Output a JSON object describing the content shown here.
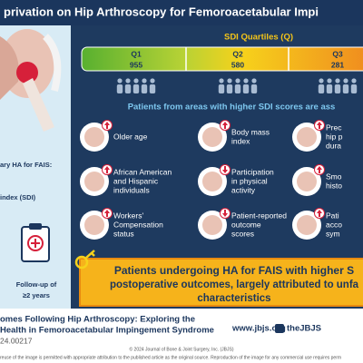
{
  "header": {
    "title": "privation on Hip Arthroscopy for Femoroacetabular Impi"
  },
  "sidebar": {
    "lines": [
      "ary HA for FAIS:",
      "index (SDI)"
    ],
    "followup": [
      "Follow-up of",
      "≥2 years"
    ]
  },
  "quartiles": {
    "title": "SDI Quartiles (Q)",
    "items": [
      {
        "label": "Q1",
        "count": 955
      },
      {
        "label": "Q2",
        "count": 580
      },
      {
        "label": "Q3",
        "count": 281
      }
    ]
  },
  "findings": {
    "heading": "Patients from areas with higher SDI scores are ass",
    "items": [
      {
        "lines": [
          "Older age"
        ],
        "arrow": "up"
      },
      {
        "lines": [
          "Body mass",
          "index"
        ],
        "arrow": "up"
      },
      {
        "lines": [
          "Prec",
          "hip p",
          "dura"
        ],
        "arrow": "up"
      },
      {
        "lines": [
          "African American",
          "and Hispanic",
          "individuals"
        ],
        "arrow": "up"
      },
      {
        "lines": [
          "Participation",
          "in physical",
          "activity"
        ],
        "arrow": "down"
      },
      {
        "lines": [
          "Smo",
          "histo"
        ],
        "arrow": "up"
      },
      {
        "lines": [
          "Workers'",
          "Compensation",
          "status"
        ],
        "arrow": "up"
      },
      {
        "lines": [
          "Patient-reported",
          "outcome",
          "scores"
        ],
        "arrow": "down"
      },
      {
        "lines": [
          "Pati",
          "acco",
          "sym"
        ],
        "arrow": "up"
      }
    ]
  },
  "conclusion": [
    "Patients undergoing HA for FAIS with higher S",
    "postoperative outcomes, largely attributed to unfa",
    "characteristics"
  ],
  "footer": {
    "title": [
      "omes Following Hip Arthroscopy: Exploring the",
      "Health in Femoroacetabular Impingement Syndrome"
    ],
    "doi": "24.00217",
    "website": "www.jbjs.org",
    "social": "theJBJS",
    "copyright": "© 2024 Journal of Bone & Joint Surgery, Inc. (JBJS)",
    "license": "reuse of the image is permitted with appropriate attribution to the published article as the original source. Reproduction of the image for any commercial use requires perm"
  }
}
